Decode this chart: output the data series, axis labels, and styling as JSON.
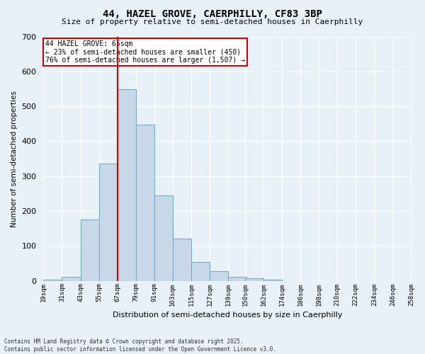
{
  "title_line1": "44, HAZEL GROVE, CAERPHILLY, CF83 3BP",
  "title_line2": "Size of property relative to semi-detached houses in Caerphilly",
  "xlabel": "Distribution of semi-detached houses by size in Caerphilly",
  "ylabel": "Number of semi-detached properties",
  "bar_color": "#c8d8e8",
  "bar_edge_color": "#7aaac8",
  "bg_color": "#e8f0f8",
  "grid_color": "#ffffff",
  "vline_color": "#cc0000",
  "annotation_title": "44 HAZEL GROVE: 65sqm",
  "annotation_line2": "← 23% of semi-detached houses are smaller (450)",
  "annotation_line3": "76% of semi-detached houses are larger (1,507) →",
  "annotation_box_color": "#cc0000",
  "bin_starts": [
    19,
    31,
    43,
    55,
    67,
    79,
    91,
    103,
    115,
    127,
    139,
    150,
    162,
    174,
    186,
    198,
    210,
    222,
    234,
    246
  ],
  "bin_labels": [
    "19sqm",
    "31sqm",
    "43sqm",
    "55sqm",
    "67sqm",
    "79sqm",
    "91sqm",
    "103sqm",
    "115sqm",
    "127sqm",
    "139sqm",
    "150sqm",
    "162sqm",
    "174sqm",
    "186sqm",
    "198sqm",
    "210sqm",
    "222sqm",
    "234sqm",
    "246sqm",
    "258sqm"
  ],
  "counts": [
    3,
    12,
    175,
    335,
    548,
    447,
    245,
    120,
    55,
    27,
    12,
    8,
    3,
    0,
    0,
    0,
    0,
    0,
    0,
    0
  ],
  "vline_x": 67,
  "ylim": [
    0,
    700
  ],
  "yticks": [
    0,
    100,
    200,
    300,
    400,
    500,
    600,
    700
  ],
  "footer_line1": "Contains HM Land Registry data © Crown copyright and database right 2025.",
  "footer_line2": "Contains public sector information licensed under the Open Government Licence v3.0."
}
